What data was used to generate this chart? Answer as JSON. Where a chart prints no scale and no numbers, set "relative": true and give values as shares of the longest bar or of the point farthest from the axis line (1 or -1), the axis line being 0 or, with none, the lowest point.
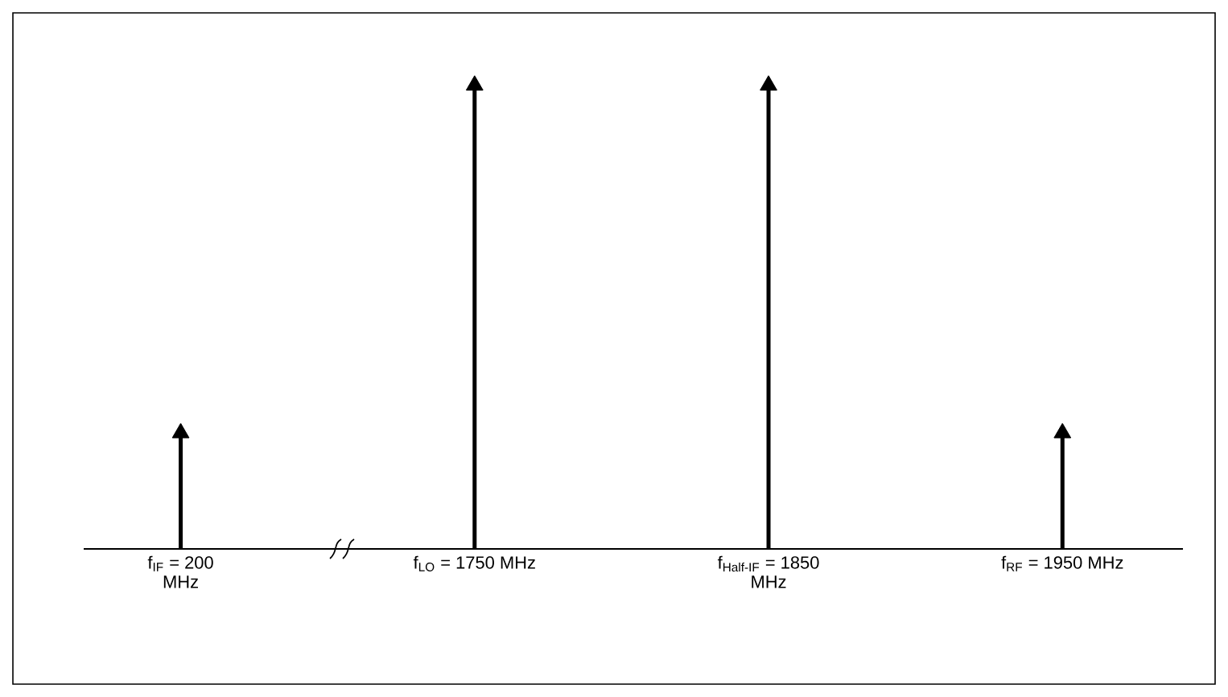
{
  "chart_data": {
    "type": "lollipop",
    "relative": true,
    "marker": "triangle",
    "color": "#000000",
    "categories": [
      "f$_{IF}$ = 200 MHz",
      "f$_{LO}$ = 1750 MHz",
      "f$_{Half-IF}$ = 1850 MHz",
      "f$_{RF}$ = 1950 MHz"
    ],
    "values": [
      0.25,
      1,
      1,
      0.25
    ]
  }
}
